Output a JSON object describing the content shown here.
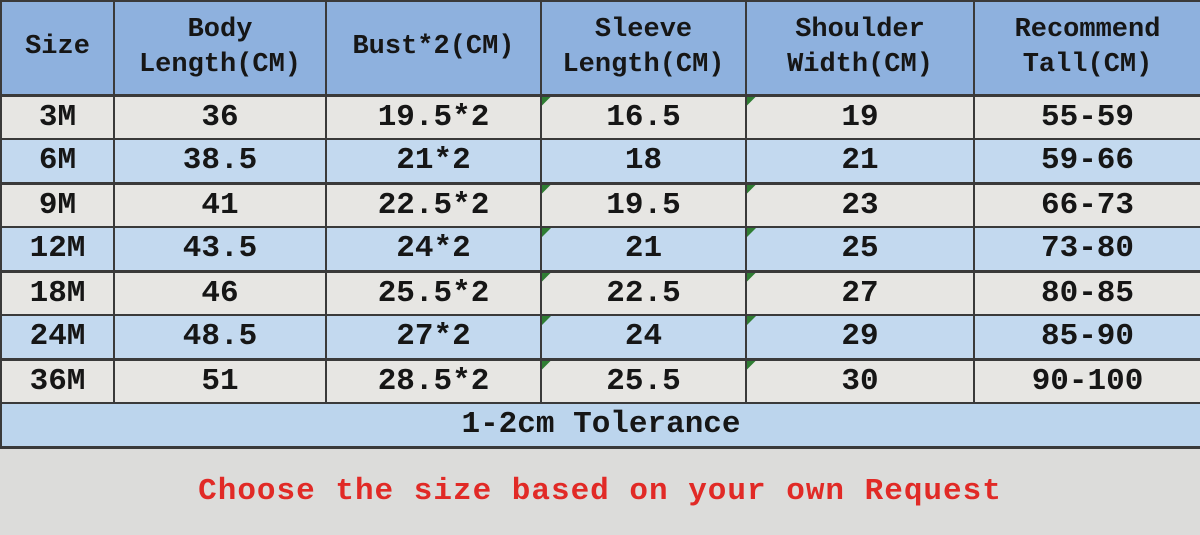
{
  "chart_data": {
    "type": "table",
    "title": "Baby clothing size chart",
    "columns": [
      {
        "id": "size",
        "label": "Size",
        "lines": [
          "Size"
        ]
      },
      {
        "id": "body-length",
        "label": "Body Length(CM)",
        "lines": [
          "Body",
          "Length(CM)"
        ]
      },
      {
        "id": "bust",
        "label": "Bust*2(CM)",
        "lines": [
          "Bust*2(CM)"
        ]
      },
      {
        "id": "sleeve-length",
        "label": "Sleeve Length(CM)",
        "lines": [
          "Sleeve",
          "Length(CM)"
        ]
      },
      {
        "id": "shoulder-width",
        "label": "Shoulder Width(CM)",
        "lines": [
          "Shoulder",
          "Width(CM)"
        ]
      },
      {
        "id": "recommend-tall",
        "label": "Recommend Tall(CM)",
        "lines": [
          "Recommend",
          "Tall(CM)"
        ]
      }
    ],
    "rows": [
      [
        "3M",
        "36",
        "19.5*2",
        "16.5",
        "19",
        "55-59"
      ],
      [
        "6M",
        "38.5",
        "21*2",
        "18",
        "21",
        "59-66"
      ],
      [
        "9M",
        "41",
        "22.5*2",
        "19.5",
        "23",
        "66-73"
      ],
      [
        "12M",
        "43.5",
        "24*2",
        "21",
        "25",
        "73-80"
      ],
      [
        "18M",
        "46",
        "25.5*2",
        "22.5",
        "27",
        "80-85"
      ],
      [
        "24M",
        "48.5",
        "27*2",
        "24",
        "29",
        "85-90"
      ],
      [
        "36M",
        "51",
        "28.5*2",
        "25.5",
        "30",
        "90-100"
      ]
    ],
    "footer_note": "1-2cm Tolerance",
    "bottom_note": "Choose the size based on your own Request"
  },
  "presentation": {
    "row_shades": [
      "gray",
      "blue",
      "gray",
      "blue",
      "gray",
      "blue",
      "gray"
    ],
    "thick_bottom_rows": [
      1,
      3,
      5
    ],
    "error_indicator_rows": [
      0,
      2,
      3,
      4,
      5,
      6
    ],
    "error_indicator_cols": [
      3,
      4
    ],
    "colors": {
      "header_blue": "#8eb1de",
      "row_blue": "#c3d9ef",
      "row_gray": "#e7e6e3",
      "tolerance_blue": "#bcd5ed",
      "page_gray": "#dcdcda",
      "border_dark": "#3a3a3a",
      "text_dark": "#161616",
      "note_red": "#e12a26",
      "indicator_green": "#2f7d33"
    }
  }
}
